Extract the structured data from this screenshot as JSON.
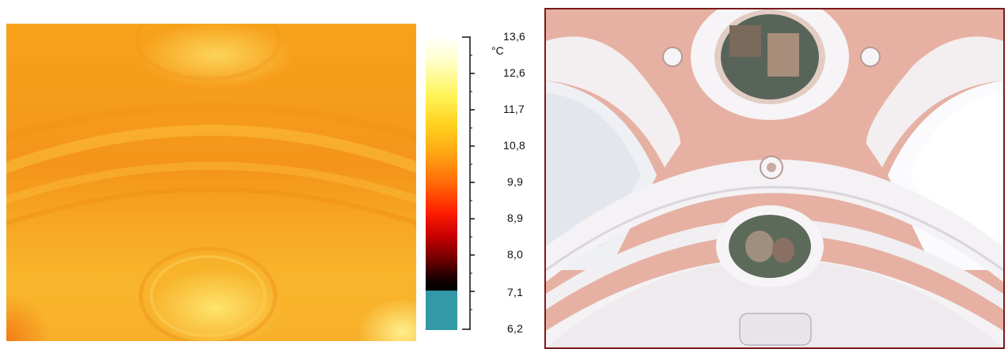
{
  "thermal_image": {
    "icon": "thermal-ceiling-image",
    "palette": [
      "#f59a1c",
      "#f8b52c",
      "#ffe878"
    ]
  },
  "temperature_scale": {
    "unit": "°C",
    "labels": [
      "13,6",
      "12,6",
      "11,7",
      "10,8",
      "9,9",
      "8,9",
      "8,0",
      "7,1",
      "6,2"
    ],
    "below_range_color": "#3399a6"
  },
  "visible_photo": {
    "icon": "church-ceiling-photo",
    "palette": [
      "#e7b2a4",
      "#f4f4f6",
      "#ffffff"
    ]
  }
}
